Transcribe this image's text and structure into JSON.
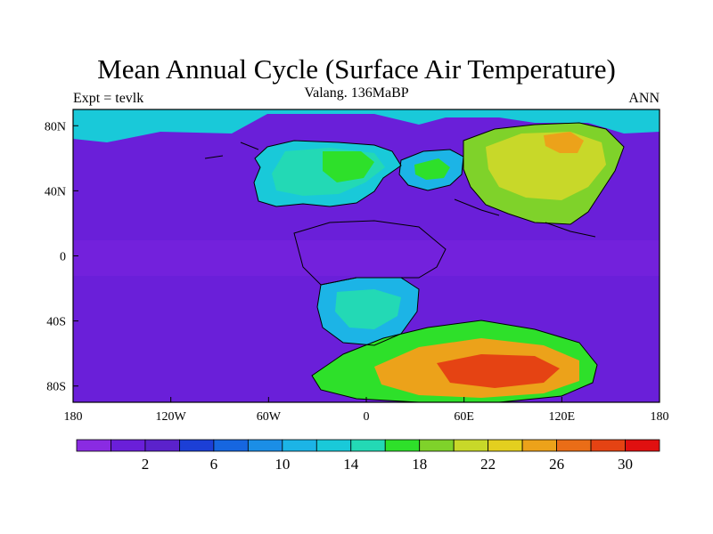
{
  "title": "Mean Annual Cycle (Surface Air Temperature)",
  "subtitle": "Valang. 136MaBP",
  "left_string": "Expt = tevlk",
  "right_string": "ANN",
  "map": {
    "projection": "cylindrical-equidistant",
    "lon_range": [
      -180,
      180
    ],
    "lat_range": [
      -90,
      90
    ],
    "x_ticks": [
      {
        "value": -180,
        "label": "180"
      },
      {
        "value": -120,
        "label": "120W"
      },
      {
        "value": -60,
        "label": "60W"
      },
      {
        "value": 0,
        "label": "0"
      },
      {
        "value": 60,
        "label": "60E"
      },
      {
        "value": 120,
        "label": "120E"
      },
      {
        "value": 180,
        "label": "180"
      }
    ],
    "y_ticks": [
      {
        "value": 80,
        "label": "80N"
      },
      {
        "value": 40,
        "label": "40N"
      },
      {
        "value": 0,
        "label": "0"
      },
      {
        "value": -40,
        "label": "40S"
      },
      {
        "value": -80,
        "label": "80S"
      }
    ]
  },
  "colorbar": {
    "colors": [
      "#8a2be2",
      "#6a1fd9",
      "#5b22cc",
      "#1c3fd6",
      "#1666e0",
      "#1b8ee6",
      "#1cb4e6",
      "#19c9d9",
      "#23d9b5",
      "#2ee02a",
      "#7fd22a",
      "#c8d829",
      "#e3cf1f",
      "#eca21a",
      "#ea6d17",
      "#e54313",
      "#e01010"
    ],
    "labels": [
      {
        "index": 1,
        "text": "2"
      },
      {
        "index": 3,
        "text": "6"
      },
      {
        "index": 5,
        "text": "10"
      },
      {
        "index": 7,
        "text": "14"
      },
      {
        "index": 9,
        "text": "18"
      },
      {
        "index": 11,
        "text": "22"
      },
      {
        "index": 13,
        "text": "26"
      },
      {
        "index": 15,
        "text": "30"
      }
    ]
  },
  "field": {
    "ocean_color": "#6a1fd9",
    "tropical_band_color": "#7b24e0",
    "regions": [
      {
        "name": "north-america",
        "color": "#19c9d9"
      },
      {
        "name": "north-america-interior",
        "color": "#23d9b5"
      },
      {
        "name": "north-america-core",
        "color": "#2ee02a"
      },
      {
        "name": "europe",
        "color": "#1cb4e6"
      },
      {
        "name": "europe-core",
        "color": "#2ee02a"
      },
      {
        "name": "asia",
        "color": "#7fd22a"
      },
      {
        "name": "asia-core",
        "color": "#c8d829"
      },
      {
        "name": "asia-hot",
        "color": "#eca21a"
      },
      {
        "name": "arctic-rim",
        "color": "#19c9d9"
      },
      {
        "name": "south-america",
        "color": "#1cb4e6"
      },
      {
        "name": "south-america-core",
        "color": "#23d9b5"
      },
      {
        "name": "antarctic-landmass",
        "color": "#2ee02a"
      },
      {
        "name": "antarctic-warm",
        "color": "#eca21a"
      },
      {
        "name": "antarctic-hot",
        "color": "#e54313"
      }
    ]
  }
}
